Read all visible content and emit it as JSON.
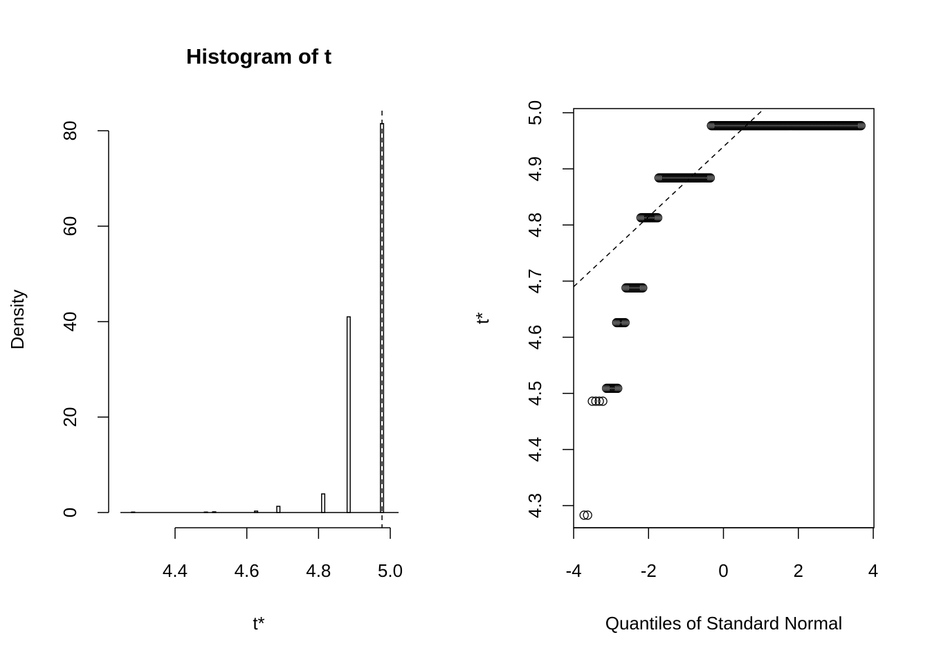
{
  "chart_data": [
    {
      "type": "histogram",
      "title": "Histogram of t",
      "xlabel": "t*",
      "ylabel": "Density",
      "xticks": [
        "4.4",
        "4.6",
        "4.8",
        "5.0"
      ],
      "yticks": [
        "0",
        "20",
        "40",
        "60",
        "80"
      ],
      "xlim": [
        4.25,
        5.02
      ],
      "ylim": [
        0,
        82
      ],
      "reference_line_x": 4.977,
      "bars": [
        {
          "x": 4.283,
          "density": 0.1
        },
        {
          "x": 4.486,
          "density": 0.1
        },
        {
          "x": 4.509,
          "density": 0.15
        },
        {
          "x": 4.626,
          "density": 0.3
        },
        {
          "x": 4.688,
          "density": 1.3
        },
        {
          "x": 4.813,
          "density": 3.9
        },
        {
          "x": 4.884,
          "density": 41
        },
        {
          "x": 4.977,
          "density": 81.5
        }
      ]
    },
    {
      "type": "scatter",
      "title": "",
      "xlabel": "Quantiles of Standard Normal",
      "ylabel": "t*",
      "xticks": [
        "-4",
        "-2",
        "0",
        "2",
        "4"
      ],
      "yticks": [
        "4.3",
        "4.4",
        "4.5",
        "4.6",
        "4.7",
        "4.8",
        "4.9",
        "5.0"
      ],
      "xlim": [
        -4,
        4
      ],
      "ylim": [
        4.26,
        5.0
      ],
      "reference_line": {
        "from": [
          -4,
          4.69
        ],
        "to": [
          1.13,
          5.01
        ],
        "style": "dashed"
      },
      "point_groups": [
        {
          "y": 4.283,
          "x_from": -3.72,
          "x_to": -3.55
        },
        {
          "y": 4.486,
          "x_from": -3.5,
          "x_to": -3.18
        },
        {
          "y": 4.509,
          "x_from": -3.12,
          "x_to": -2.8
        },
        {
          "y": 4.626,
          "x_from": -2.85,
          "x_to": -2.6
        },
        {
          "y": 4.688,
          "x_from": -2.6,
          "x_to": -2.15
        },
        {
          "y": 4.813,
          "x_from": -2.2,
          "x_to": -1.72
        },
        {
          "y": 4.884,
          "x_from": -1.72,
          "x_to": -0.32
        },
        {
          "y": 4.977,
          "x_from": -0.32,
          "x_to": 3.7
        }
      ]
    }
  ]
}
